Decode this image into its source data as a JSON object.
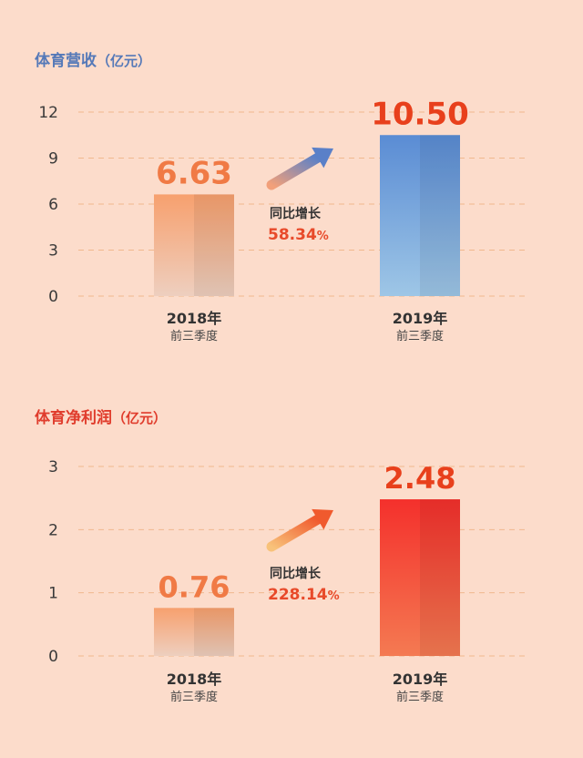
{
  "chart_data": [
    {
      "type": "bar",
      "title": "体育营收",
      "unit": "（亿元）",
      "title_color": "#5579b8",
      "categories": [
        "2018年",
        "2019年"
      ],
      "category_sub": "前三季度",
      "values": [
        6.63,
        10.5
      ],
      "value_labels": [
        "6.63",
        "10.50"
      ],
      "value_label_colors": [
        "#f07a45",
        "#e8401c"
      ],
      "yticks": [
        "0",
        "3",
        "6",
        "9",
        "12"
      ],
      "ylim": [
        0,
        12
      ],
      "grid": true,
      "growth_label": "同比增长",
      "growth_value": "58.34",
      "growth_pct": "%",
      "bar_colors": [
        [
          "#f7a06e",
          "#eecfbf"
        ],
        [
          "#5a8cd4",
          "#9ec6e6"
        ]
      ],
      "arrow_colors": [
        "#f2a07a",
        "#5a80c8"
      ]
    },
    {
      "type": "bar",
      "title": "体育净利润",
      "unit": "（亿元）",
      "title_color": "#e03c2c",
      "categories": [
        "2018年",
        "2019年"
      ],
      "category_sub": "前三季度",
      "values": [
        0.76,
        2.48
      ],
      "value_labels": [
        "0.76",
        "2.48"
      ],
      "value_label_colors": [
        "#f07a45",
        "#e8401c"
      ],
      "yticks": [
        "0",
        "1",
        "2",
        "3"
      ],
      "ylim": [
        0,
        3
      ],
      "grid": true,
      "growth_label": "同比增长",
      "growth_value": "228.14",
      "growth_pct": "%",
      "bar_colors": [
        [
          "#f7a06e",
          "#eecfbf"
        ],
        [
          "#f4302c",
          "#f47a52"
        ]
      ],
      "arrow_colors": [
        "#f8c27a",
        "#f05a2e"
      ]
    }
  ]
}
